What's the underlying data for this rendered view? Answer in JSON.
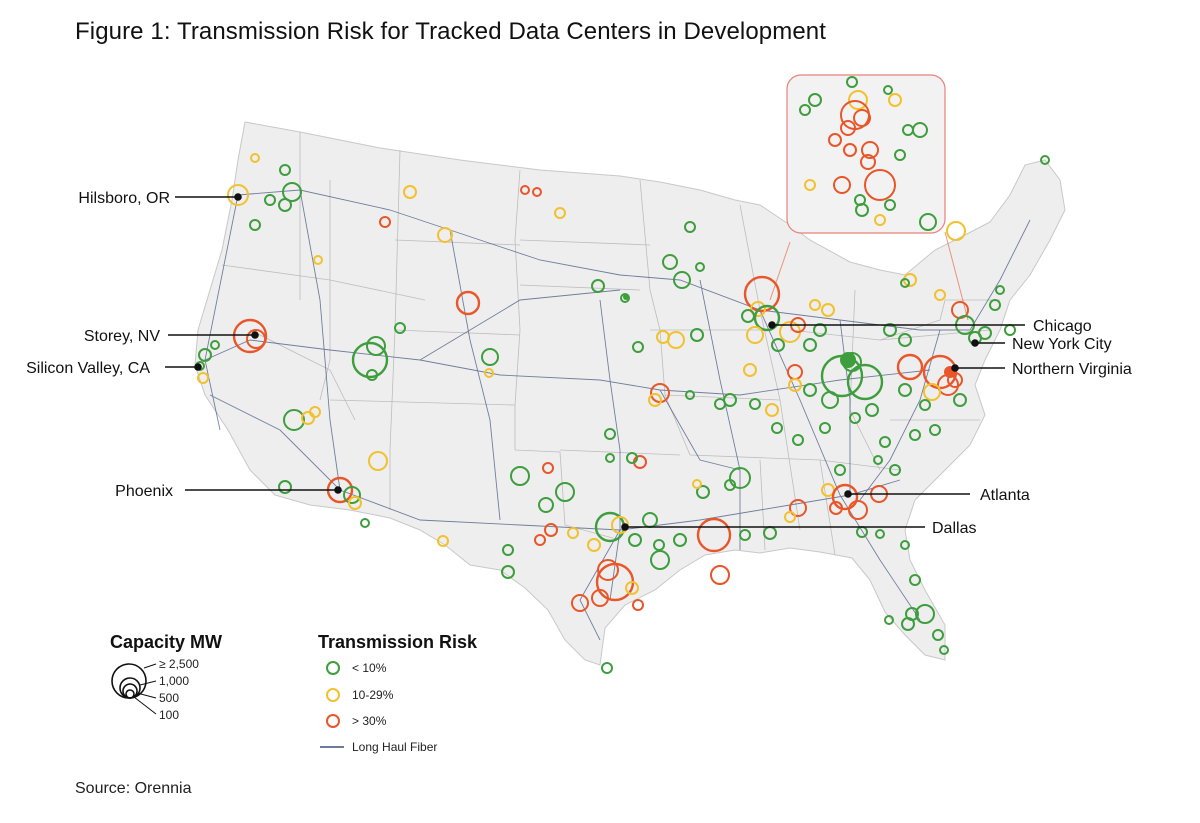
{
  "title": "Figure 1: Transmission Risk for Tracked Data Centers in Development",
  "source": "Source: Orennia",
  "colors": {
    "low": "#3e9e3e",
    "mid": "#f2c12e",
    "high": "#e8562a",
    "fiber": "#3d4f7a",
    "land": "#eeeeee",
    "border": "#bdbdbd"
  },
  "city_labels": [
    {
      "id": "hilsboro",
      "text": "Hilsboro, OR"
    },
    {
      "id": "storey",
      "text": "Storey, NV"
    },
    {
      "id": "silicon",
      "text": "Silicon Valley, CA"
    },
    {
      "id": "phoenix",
      "text": "Phoenix"
    },
    {
      "id": "chicago",
      "text": "Chicago"
    },
    {
      "id": "nyc",
      "text": "New York City"
    },
    {
      "id": "nova",
      "text": "Northern Virginia"
    },
    {
      "id": "atlanta",
      "text": "Atlanta"
    },
    {
      "id": "dallas",
      "text": "Dallas"
    }
  ],
  "legend": {
    "capacity_title": "Capacity MW",
    "capacity_levels": [
      "≥ 2,500",
      "1,000",
      "500",
      "100"
    ],
    "risk_title": "Transmission Risk",
    "risk_items": [
      {
        "label": "< 10%",
        "color": "#3e9e3e"
      },
      {
        "label": "10-29%",
        "color": "#f2c12e"
      },
      {
        "label": "> 30%",
        "color": "#e8562a"
      }
    ],
    "fiber_label": "Long Haul Fiber"
  }
}
